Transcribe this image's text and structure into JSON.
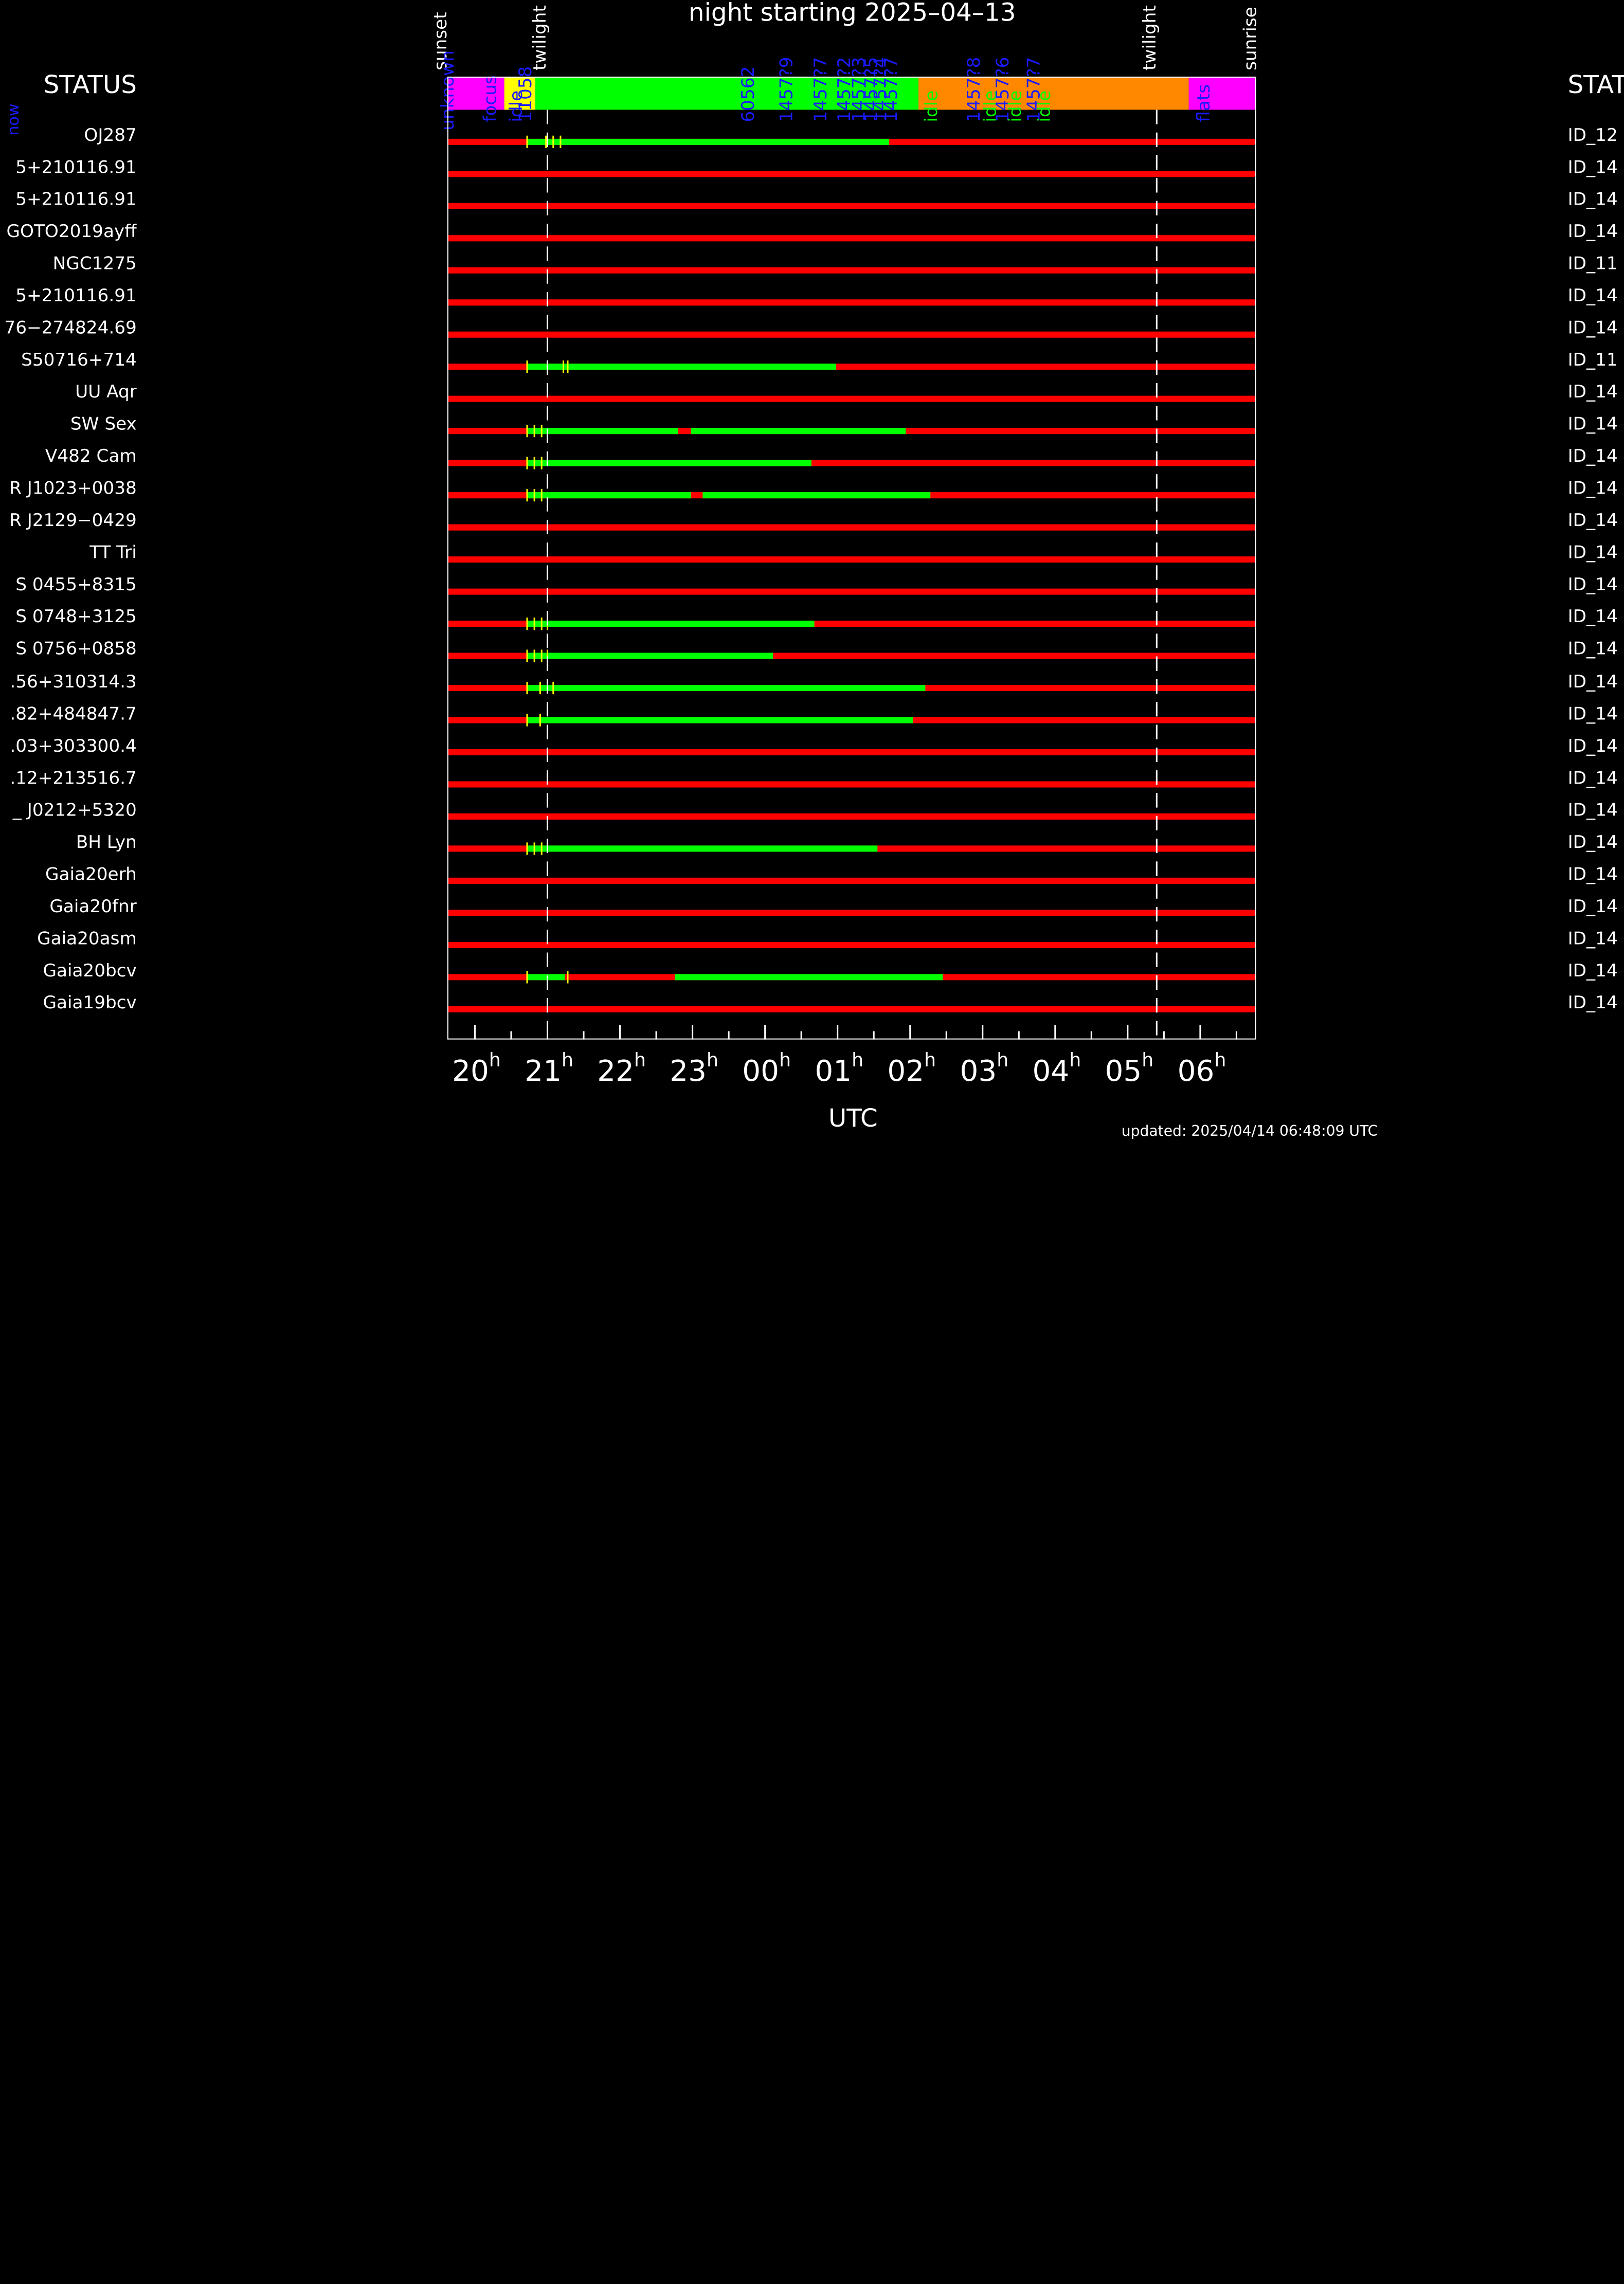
{
  "title": "night starting 2025–04–13",
  "status_header_left": "STATUS",
  "status_header_right": "STATUS",
  "now_label": "now",
  "events": {
    "sunset": "sunset",
    "twilight_evening": "twilight",
    "twilight_morning": "twilight",
    "sunrise": "sunrise"
  },
  "schedule_labels": [
    {
      "text": "unknown",
      "hour": -0.36
    },
    {
      "text": "focus",
      "hour": 0.22
    },
    {
      "text": "idle",
      "hour": 0.58
    },
    {
      "text": "11058",
      "hour": 0.7
    },
    {
      "text": "60562",
      "hour": 3.78
    },
    {
      "text": "1457?9",
      "hour": 4.3
    },
    {
      "text": "1457?7",
      "hour": 4.78
    },
    {
      "text": "1457?2",
      "hour": 5.1
    },
    {
      "text": "1457?3",
      "hour": 5.3
    },
    {
      "text": "1457?5",
      "hour": 5.48
    },
    {
      "text": "1457?4",
      "hour": 5.6
    },
    {
      "text": "1457?7",
      "hour": 5.74
    },
    {
      "text": "idle",
      "hour": 6.3
    },
    {
      "text": "1457?8",
      "hour": 6.88
    },
    {
      "text": "idle",
      "hour": 7.12
    },
    {
      "text": "1457?6",
      "hour": 7.28
    },
    {
      "text": "idle",
      "hour": 7.46
    },
    {
      "text": "1457?7",
      "hour": 7.72
    },
    {
      "text": "idle",
      "hour": 7.86
    },
    {
      "text": "flats",
      "hour": 10.06
    }
  ],
  "colors": {
    "background": "#000000",
    "frame": "#ffffff",
    "unobservable": "#ff0000",
    "observable": "#00ff00",
    "marker": "#ffff00",
    "unknown": "#ff00ff",
    "focus": "#ffff00",
    "night_idle": "#00ff00",
    "morning": "#ff8800",
    "label_blue": "#1a1aff"
  },
  "time_axis": {
    "start_hour": 19.62,
    "end_hour": 30.77,
    "ticks": [
      {
        "label": "20",
        "sup": "h"
      },
      {
        "label": "21",
        "sup": "h"
      },
      {
        "label": "22",
        "sup": "h"
      },
      {
        "label": "23",
        "sup": "h"
      },
      {
        "label": "00",
        "sup": "h"
      },
      {
        "label": "01",
        "sup": "h"
      },
      {
        "label": "02",
        "sup": "h"
      },
      {
        "label": "03",
        "sup": "h"
      },
      {
        "label": "04",
        "sup": "h"
      },
      {
        "label": "05",
        "sup": "h"
      },
      {
        "label": "06",
        "sup": "h"
      }
    ],
    "xlabel": "UTC"
  },
  "event_hours": {
    "sunset": 19.62,
    "twilight_evening": 21.0,
    "twilight_morning": 29.4,
    "sunrise": 30.77
  },
  "rows": [
    {
      "name": "OJ287",
      "id": "ID_12",
      "green": [
        [
          20.72,
          25.71
        ]
      ],
      "markers": [
        20.72,
        20.98,
        21.08,
        21.18
      ]
    },
    {
      "name": "5+210116.91",
      "id": "ID_14",
      "green": [],
      "markers": []
    },
    {
      "name": "5+210116.91",
      "id": "ID_14",
      "green": [],
      "markers": []
    },
    {
      "name": "GOTO2019ayff",
      "id": "ID_14",
      "green": [],
      "markers": []
    },
    {
      "name": "NGC1275",
      "id": "ID_11",
      "green": [],
      "markers": []
    },
    {
      "name": "5+210116.91",
      "id": "ID_14",
      "green": [],
      "markers": []
    },
    {
      "name": "76−274824.69",
      "id": "ID_14",
      "green": [],
      "markers": []
    },
    {
      "name": "S50716+714",
      "id": "ID_11",
      "green": [
        [
          20.72,
          24.98
        ]
      ],
      "markers": [
        20.72,
        21.22,
        21.28
      ]
    },
    {
      "name": "UU Aqr",
      "id": "ID_14",
      "green": [],
      "markers": []
    },
    {
      "name": "SW Sex",
      "id": "ID_14",
      "green": [
        [
          20.72,
          22.8
        ],
        [
          22.98,
          25.94
        ]
      ],
      "markers": [
        20.72,
        20.82,
        20.92
      ]
    },
    {
      "name": "V482 Cam",
      "id": "ID_14",
      "green": [
        [
          20.72,
          24.64
        ]
      ],
      "markers": [
        20.72,
        20.82,
        20.92
      ]
    },
    {
      "name": "R J1023+0038",
      "id": "ID_14",
      "green": [
        [
          20.72,
          22.98
        ],
        [
          23.14,
          26.28
        ]
      ],
      "markers": [
        20.72,
        20.82,
        20.92
      ]
    },
    {
      "name": "R J2129−0429",
      "id": "ID_14",
      "green": [],
      "markers": []
    },
    {
      "name": "TT Tri",
      "id": "ID_14",
      "green": [],
      "markers": []
    },
    {
      "name": "S 0455+8315",
      "id": "ID_14",
      "green": [],
      "markers": []
    },
    {
      "name": "S 0748+3125",
      "id": "ID_14",
      "green": [
        [
          20.72,
          24.68
        ]
      ],
      "markers": [
        20.72,
        20.82,
        20.92,
        21.0
      ]
    },
    {
      "name": "S 0756+0858",
      "id": "ID_14",
      "green": [
        [
          20.72,
          24.11
        ]
      ],
      "markers": [
        20.72,
        20.82,
        20.92,
        21.0
      ]
    },
    {
      "name": ".56+310314.3",
      "id": "ID_14",
      "green": [
        [
          20.72,
          26.21
        ]
      ],
      "markers": [
        20.72,
        20.9,
        21.08
      ]
    },
    {
      "name": ".82+484847.7",
      "id": "ID_14",
      "green": [
        [
          20.72,
          26.04
        ]
      ],
      "markers": [
        20.72,
        20.9
      ]
    },
    {
      "name": ".03+303300.4",
      "id": "ID_14",
      "green": [],
      "markers": []
    },
    {
      "name": ".12+213516.7",
      "id": "ID_14",
      "green": [],
      "markers": []
    },
    {
      "name": "_ J0212+5320",
      "id": "ID_14",
      "green": [],
      "markers": []
    },
    {
      "name": "BH Lyn",
      "id": "ID_14",
      "green": [
        [
          20.72,
          25.55
        ]
      ],
      "markers": [
        20.72,
        20.82,
        20.92
      ]
    },
    {
      "name": "Gaia20erh",
      "id": "ID_14",
      "green": [],
      "markers": []
    },
    {
      "name": "Gaia20fnr",
      "id": "ID_14",
      "green": [],
      "markers": []
    },
    {
      "name": "Gaia20asm",
      "id": "ID_14",
      "green": [],
      "markers": []
    },
    {
      "name": "Gaia20bcv",
      "id": "ID_14",
      "green": [
        [
          20.72,
          21.24
        ],
        [
          22.76,
          26.45
        ]
      ],
      "markers": [
        20.72,
        21.28
      ]
    },
    {
      "name": "Gaia19bcv",
      "id": "ID_14",
      "green": [],
      "markers": []
    }
  ],
  "updated": "updated: 2025/04/14 06:48:09 UTC"
}
